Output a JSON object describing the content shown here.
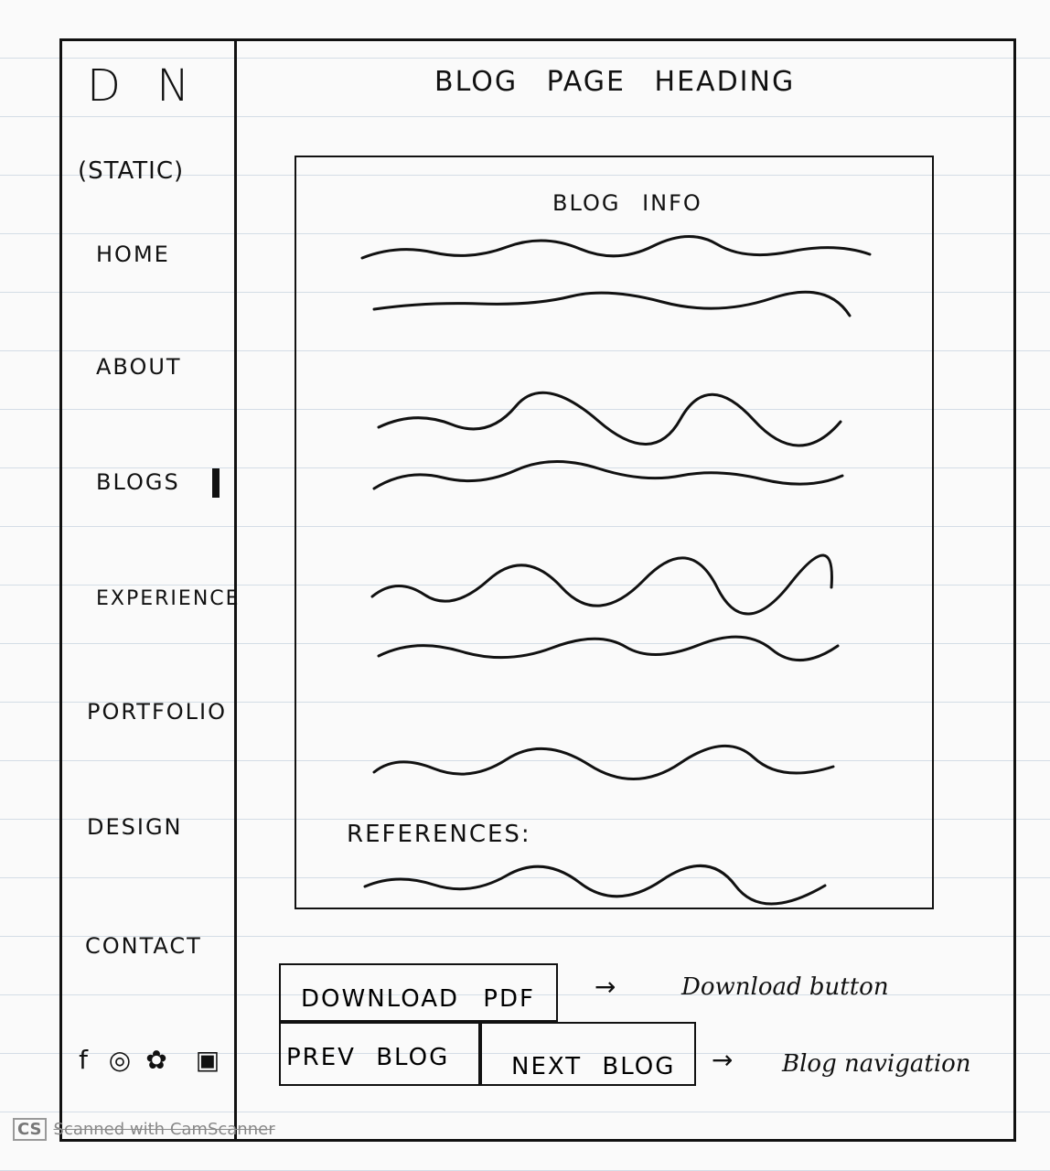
{
  "sidebar": {
    "logo": "D N",
    "static_label": "(STATIC)",
    "nav": [
      {
        "label": "HOME",
        "icon": ""
      },
      {
        "label": "ABOUT",
        "icon": ""
      },
      {
        "label": "BLOGS",
        "icon": "active-marker"
      },
      {
        "label": "EXPERIENCE",
        "icon": ""
      },
      {
        "label": "PORTFOLIO",
        "icon": ""
      },
      {
        "label": "DESIGN",
        "icon": ""
      },
      {
        "label": "CONTACT",
        "icon": ""
      }
    ],
    "social_icons": [
      "facebook-icon",
      "instagram-icon",
      "github-icon",
      "linkedin-icon"
    ],
    "social_glyphs": [
      "f",
      "◎",
      "✿",
      "▣"
    ]
  },
  "main": {
    "heading": "BLOG PAGE HEADING",
    "content": {
      "blog_info_label": "BLOG INFO",
      "references_label": "REFERENCES:"
    },
    "buttons": {
      "download": "DOWNLOAD PDF",
      "prev": "PREV BLOG",
      "next": "NEXT BLOG"
    },
    "annotations": {
      "arrow": "→",
      "download": "Download button",
      "navigation": "Blog navigation"
    }
  },
  "footer": {
    "badge": "CS",
    "scanner_text": "Scanned with CamScanner"
  }
}
